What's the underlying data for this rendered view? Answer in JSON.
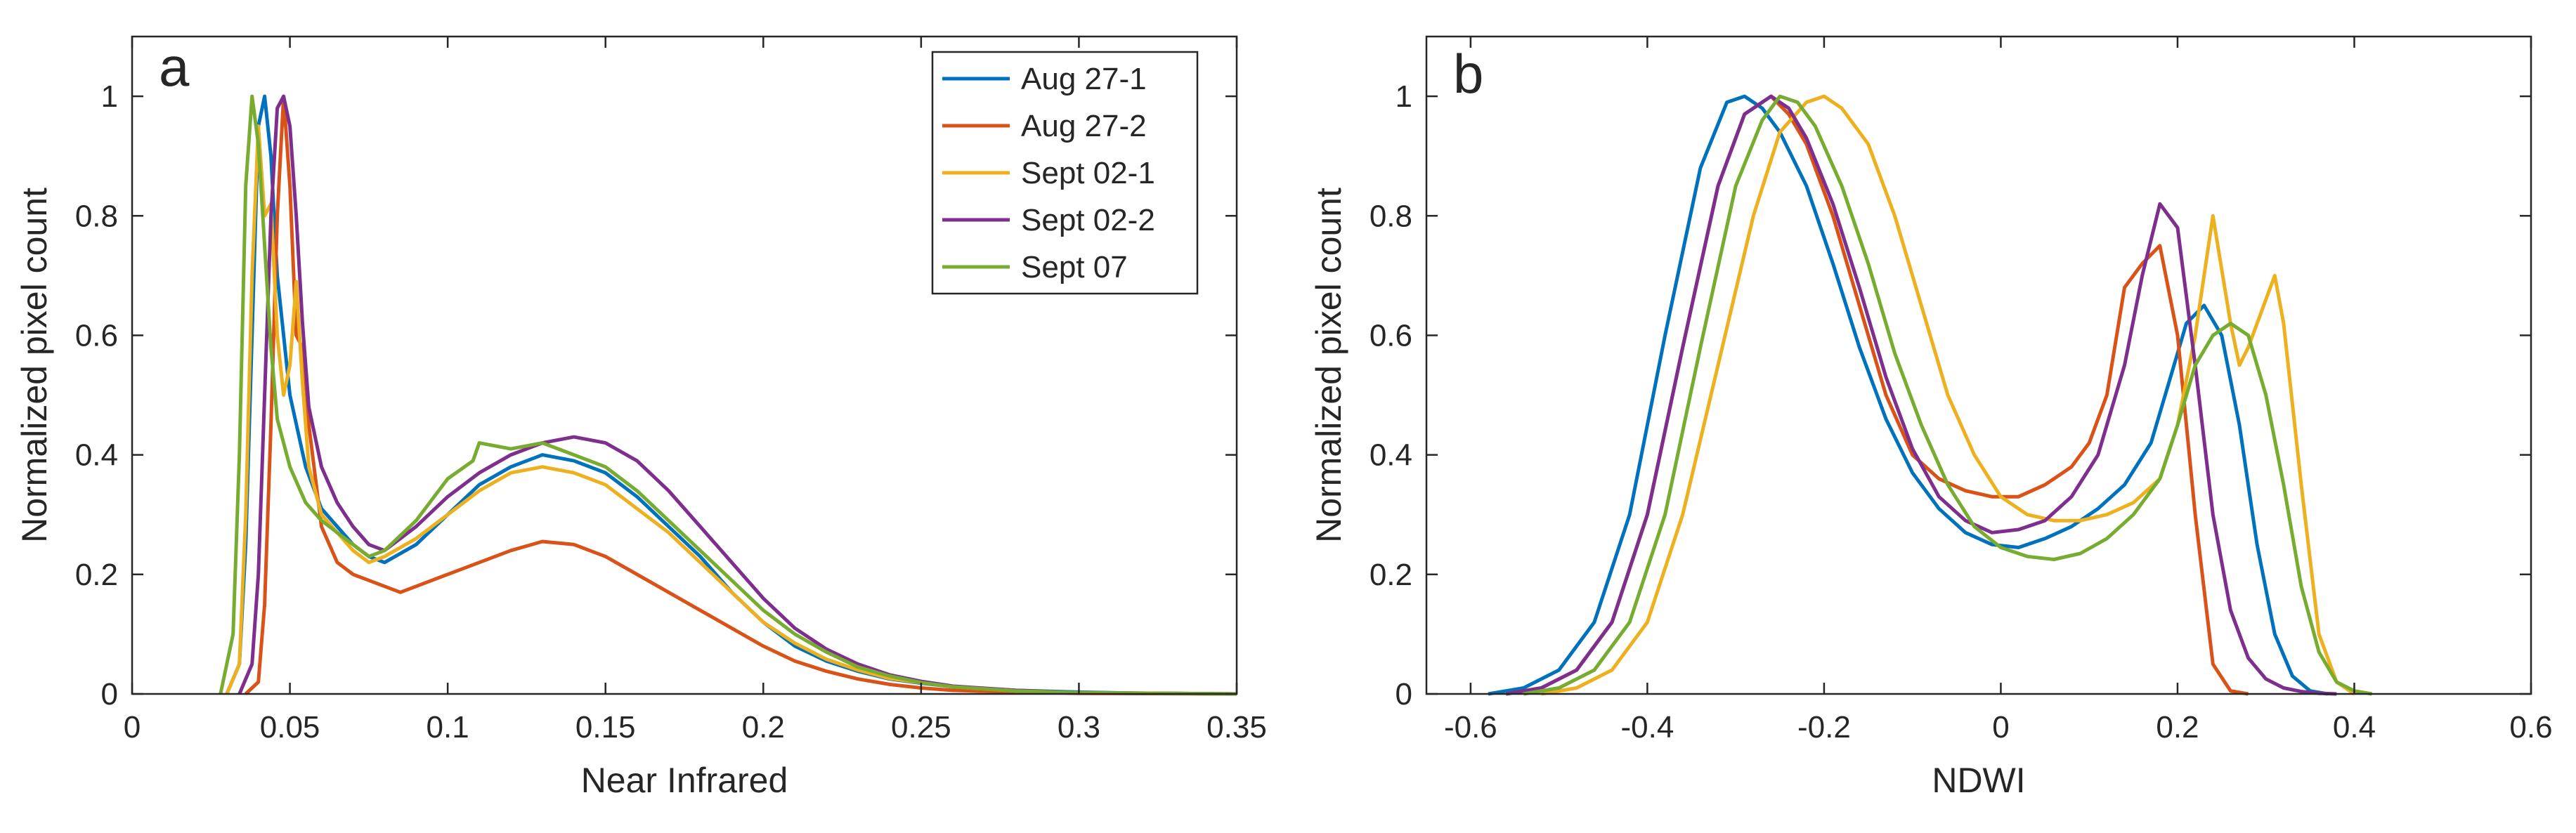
{
  "panels": [
    {
      "panel_label": "a",
      "chart_data": {
        "type": "line",
        "title": "",
        "xlabel": "Near Infrared",
        "ylabel": "Normalized pixel count",
        "xlim": [
          0,
          0.35
        ],
        "ylim": [
          0,
          1.1
        ],
        "xticks": [
          0,
          0.05,
          0.1,
          0.15,
          0.2,
          0.25,
          0.3,
          0.35
        ],
        "xtick_labels": [
          "0",
          "0.05",
          "0.1",
          "0.15",
          "0.2",
          "0.25",
          "0.3",
          "0.35"
        ],
        "yticks": [
          0,
          0.2,
          0.4,
          0.6,
          0.8,
          1
        ],
        "ytick_labels": [
          "0",
          "0.2",
          "0.4",
          "0.6",
          "0.8",
          "1"
        ],
        "legend_position": "top-right",
        "series": [
          {
            "name": "Aug 27-1",
            "color": "#0072BD",
            "x": [
              0.03,
              0.034,
              0.036,
              0.038,
              0.04,
              0.042,
              0.044,
              0.046,
              0.05,
              0.055,
              0.06,
              0.065,
              0.07,
              0.075,
              0.08,
              0.09,
              0.1,
              0.11,
              0.12,
              0.13,
              0.14,
              0.15,
              0.16,
              0.17,
              0.18,
              0.19,
              0.2,
              0.21,
              0.22,
              0.23,
              0.24,
              0.25,
              0.26,
              0.28,
              0.3,
              0.32,
              0.35
            ],
            "y": [
              0,
              0.05,
              0.25,
              0.6,
              0.95,
              1.0,
              0.9,
              0.7,
              0.5,
              0.38,
              0.31,
              0.28,
              0.25,
              0.23,
              0.22,
              0.25,
              0.3,
              0.35,
              0.38,
              0.4,
              0.39,
              0.37,
              0.33,
              0.28,
              0.23,
              0.17,
              0.12,
              0.08,
              0.055,
              0.038,
              0.025,
              0.018,
              0.012,
              0.006,
              0.003,
              0.001,
              0
            ]
          },
          {
            "name": "Aug 27-2",
            "color": "#D95319",
            "x": [
              0.036,
              0.04,
              0.042,
              0.044,
              0.046,
              0.048,
              0.05,
              0.052,
              0.054,
              0.056,
              0.06,
              0.065,
              0.07,
              0.075,
              0.08,
              0.085,
              0.09,
              0.1,
              0.11,
              0.12,
              0.13,
              0.14,
              0.15,
              0.16,
              0.17,
              0.18,
              0.19,
              0.2,
              0.21,
              0.22,
              0.23,
              0.24,
              0.25,
              0.26,
              0.28,
              0.3,
              0.35
            ],
            "y": [
              0,
              0.02,
              0.15,
              0.45,
              0.8,
              1.0,
              0.85,
              0.6,
              0.58,
              0.45,
              0.28,
              0.22,
              0.2,
              0.19,
              0.18,
              0.17,
              0.18,
              0.2,
              0.22,
              0.24,
              0.255,
              0.25,
              0.23,
              0.2,
              0.17,
              0.14,
              0.11,
              0.08,
              0.055,
              0.038,
              0.025,
              0.016,
              0.01,
              0.006,
              0.003,
              0.001,
              0
            ]
          },
          {
            "name": "Sept 02-1",
            "color": "#EDB120",
            "x": [
              0.03,
              0.034,
              0.036,
              0.038,
              0.04,
              0.042,
              0.044,
              0.046,
              0.048,
              0.05,
              0.052,
              0.054,
              0.056,
              0.06,
              0.065,
              0.07,
              0.075,
              0.08,
              0.09,
              0.1,
              0.11,
              0.12,
              0.13,
              0.14,
              0.15,
              0.16,
              0.17,
              0.18,
              0.19,
              0.2,
              0.21,
              0.22,
              0.23,
              0.24,
              0.26,
              0.28,
              0.3,
              0.35
            ],
            "y": [
              0,
              0.05,
              0.3,
              0.7,
              0.95,
              0.8,
              0.82,
              0.6,
              0.5,
              0.55,
              0.69,
              0.52,
              0.38,
              0.3,
              0.27,
              0.24,
              0.22,
              0.23,
              0.26,
              0.3,
              0.34,
              0.37,
              0.38,
              0.37,
              0.35,
              0.31,
              0.27,
              0.22,
              0.17,
              0.12,
              0.085,
              0.058,
              0.04,
              0.026,
              0.012,
              0.005,
              0.002,
              0
            ]
          },
          {
            "name": "Sept 02-2",
            "color": "#7E2F8E",
            "x": [
              0.034,
              0.038,
              0.04,
              0.042,
              0.044,
              0.046,
              0.048,
              0.05,
              0.052,
              0.054,
              0.056,
              0.06,
              0.065,
              0.07,
              0.075,
              0.08,
              0.09,
              0.1,
              0.11,
              0.12,
              0.13,
              0.14,
              0.15,
              0.16,
              0.17,
              0.18,
              0.19,
              0.2,
              0.21,
              0.22,
              0.23,
              0.24,
              0.25,
              0.26,
              0.28,
              0.3,
              0.35
            ],
            "y": [
              0,
              0.05,
              0.2,
              0.5,
              0.8,
              0.98,
              1.0,
              0.95,
              0.8,
              0.62,
              0.48,
              0.38,
              0.32,
              0.28,
              0.25,
              0.24,
              0.28,
              0.33,
              0.37,
              0.4,
              0.42,
              0.43,
              0.42,
              0.39,
              0.34,
              0.28,
              0.22,
              0.16,
              0.11,
              0.075,
              0.05,
              0.032,
              0.021,
              0.013,
              0.006,
              0.002,
              0
            ]
          },
          {
            "name": "Sept 07",
            "color": "#77AC30",
            "x": [
              0.028,
              0.032,
              0.034,
              0.036,
              0.038,
              0.04,
              0.042,
              0.044,
              0.046,
              0.05,
              0.055,
              0.06,
              0.065,
              0.07,
              0.075,
              0.08,
              0.09,
              0.1,
              0.108,
              0.11,
              0.12,
              0.13,
              0.14,
              0.15,
              0.16,
              0.17,
              0.18,
              0.19,
              0.2,
              0.21,
              0.22,
              0.23,
              0.24,
              0.25,
              0.26,
              0.28,
              0.3,
              0.35
            ],
            "y": [
              0,
              0.1,
              0.4,
              0.85,
              1.0,
              0.92,
              0.75,
              0.58,
              0.46,
              0.38,
              0.32,
              0.29,
              0.27,
              0.25,
              0.23,
              0.24,
              0.29,
              0.36,
              0.39,
              0.42,
              0.41,
              0.42,
              0.4,
              0.38,
              0.34,
              0.29,
              0.24,
              0.19,
              0.14,
              0.1,
              0.07,
              0.045,
              0.03,
              0.019,
              0.012,
              0.005,
              0.002,
              0
            ]
          }
        ]
      }
    },
    {
      "panel_label": "b",
      "chart_data": {
        "type": "line",
        "title": "",
        "xlabel": "NDWI",
        "ylabel": "Normalized pixel count",
        "xlim": [
          -0.65,
          0.6
        ],
        "ylim": [
          0,
          1.1
        ],
        "xticks": [
          -0.6,
          -0.4,
          -0.2,
          0,
          0.2,
          0.4,
          0.6
        ],
        "xtick_labels": [
          "-0.6",
          "-0.4",
          "-0.2",
          "0",
          "0.2",
          "0.4",
          "0.6"
        ],
        "yticks": [
          0,
          0.2,
          0.4,
          0.6,
          0.8,
          1
        ],
        "ytick_labels": [
          "0",
          "0.2",
          "0.4",
          "0.6",
          "0.8",
          "1"
        ],
        "series": [
          {
            "name": "Aug 27-1",
            "color": "#0072BD",
            "x": [
              -0.58,
              -0.54,
              -0.5,
              -0.46,
              -0.42,
              -0.38,
              -0.34,
              -0.31,
              -0.29,
              -0.27,
              -0.25,
              -0.22,
              -0.19,
              -0.16,
              -0.13,
              -0.1,
              -0.07,
              -0.04,
              -0.01,
              0.02,
              0.05,
              0.08,
              0.11,
              0.14,
              0.17,
              0.19,
              0.21,
              0.23,
              0.25,
              0.27,
              0.29,
              0.31,
              0.33,
              0.35,
              0.37
            ],
            "y": [
              0,
              0.01,
              0.04,
              0.12,
              0.3,
              0.6,
              0.88,
              0.99,
              1.0,
              0.98,
              0.94,
              0.85,
              0.72,
              0.58,
              0.46,
              0.37,
              0.31,
              0.27,
              0.25,
              0.245,
              0.26,
              0.28,
              0.31,
              0.35,
              0.42,
              0.52,
              0.62,
              0.65,
              0.6,
              0.45,
              0.25,
              0.1,
              0.03,
              0.005,
              0
            ]
          },
          {
            "name": "Aug 27-2",
            "color": "#D95319",
            "x": [
              -0.56,
              -0.52,
              -0.48,
              -0.44,
              -0.4,
              -0.36,
              -0.32,
              -0.29,
              -0.26,
              -0.24,
              -0.22,
              -0.19,
              -0.16,
              -0.13,
              -0.1,
              -0.07,
              -0.04,
              -0.01,
              0.02,
              0.05,
              0.08,
              0.1,
              0.12,
              0.14,
              0.16,
              0.18,
              0.2,
              0.22,
              0.24,
              0.26,
              0.28
            ],
            "y": [
              0,
              0.01,
              0.04,
              0.12,
              0.3,
              0.58,
              0.85,
              0.97,
              1.0,
              0.97,
              0.92,
              0.8,
              0.65,
              0.5,
              0.4,
              0.36,
              0.34,
              0.33,
              0.33,
              0.35,
              0.38,
              0.42,
              0.5,
              0.68,
              0.72,
              0.75,
              0.6,
              0.3,
              0.05,
              0.005,
              0
            ]
          },
          {
            "name": "Sept 02-1",
            "color": "#EDB120",
            "x": [
              -0.52,
              -0.48,
              -0.44,
              -0.4,
              -0.36,
              -0.32,
              -0.28,
              -0.25,
              -0.22,
              -0.2,
              -0.18,
              -0.15,
              -0.12,
              -0.09,
              -0.06,
              -0.03,
              0,
              0.03,
              0.06,
              0.09,
              0.12,
              0.15,
              0.18,
              0.2,
              0.22,
              0.24,
              0.26,
              0.27,
              0.28,
              0.3,
              0.31,
              0.32,
              0.34,
              0.36,
              0.38,
              0.4
            ],
            "y": [
              0,
              0.01,
              0.04,
              0.12,
              0.3,
              0.55,
              0.8,
              0.94,
              0.99,
              1.0,
              0.98,
              0.92,
              0.8,
              0.65,
              0.5,
              0.4,
              0.33,
              0.3,
              0.29,
              0.29,
              0.3,
              0.32,
              0.36,
              0.45,
              0.6,
              0.8,
              0.62,
              0.55,
              0.58,
              0.66,
              0.7,
              0.62,
              0.35,
              0.1,
              0.02,
              0
            ]
          },
          {
            "name": "Sept 02-2",
            "color": "#7E2F8E",
            "x": [
              -0.56,
              -0.52,
              -0.48,
              -0.44,
              -0.4,
              -0.36,
              -0.32,
              -0.29,
              -0.26,
              -0.24,
              -0.22,
              -0.19,
              -0.16,
              -0.13,
              -0.1,
              -0.07,
              -0.04,
              -0.01,
              0.02,
              0.05,
              0.08,
              0.11,
              0.14,
              0.16,
              0.18,
              0.2,
              0.22,
              0.24,
              0.26,
              0.28,
              0.3,
              0.32,
              0.34,
              0.36,
              0.38
            ],
            "y": [
              0,
              0.01,
              0.04,
              0.12,
              0.3,
              0.58,
              0.85,
              0.97,
              1.0,
              0.98,
              0.93,
              0.82,
              0.68,
              0.53,
              0.41,
              0.33,
              0.29,
              0.27,
              0.275,
              0.29,
              0.33,
              0.4,
              0.55,
              0.7,
              0.82,
              0.78,
              0.55,
              0.3,
              0.14,
              0.06,
              0.025,
              0.01,
              0.004,
              0.001,
              0
            ]
          },
          {
            "name": "Sept 07",
            "color": "#77AC30",
            "x": [
              -0.54,
              -0.5,
              -0.46,
              -0.42,
              -0.38,
              -0.34,
              -0.3,
              -0.27,
              -0.25,
              -0.23,
              -0.21,
              -0.18,
              -0.15,
              -0.12,
              -0.09,
              -0.06,
              -0.03,
              0,
              0.03,
              0.06,
              0.09,
              0.12,
              0.15,
              0.18,
              0.2,
              0.22,
              0.24,
              0.26,
              0.28,
              0.3,
              0.32,
              0.34,
              0.36,
              0.38,
              0.4,
              0.42
            ],
            "y": [
              0,
              0.01,
              0.04,
              0.12,
              0.3,
              0.58,
              0.85,
              0.96,
              1.0,
              0.99,
              0.95,
              0.85,
              0.72,
              0.57,
              0.45,
              0.35,
              0.28,
              0.245,
              0.23,
              0.225,
              0.235,
              0.26,
              0.3,
              0.36,
              0.45,
              0.55,
              0.6,
              0.62,
              0.6,
              0.5,
              0.35,
              0.18,
              0.07,
              0.02,
              0.005,
              0
            ]
          }
        ]
      }
    }
  ]
}
